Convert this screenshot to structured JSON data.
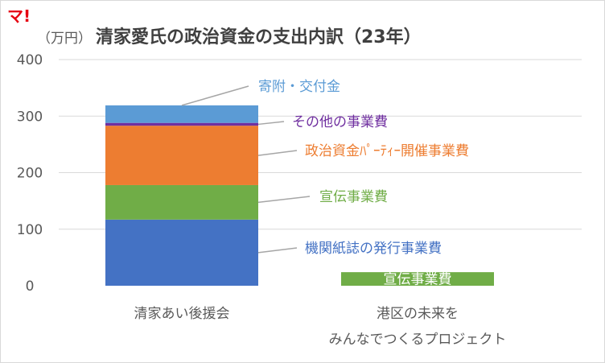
{
  "logo": "マ!",
  "colors": {
    "logo": "#e60012",
    "title": "#404040",
    "axis_text": "#595959",
    "grid": "#d9d9d9",
    "leader": "#a6a6a6",
    "blue": "#4472c4",
    "green": "#70ad47",
    "orange": "#ed7d31",
    "purple": "#7030a0",
    "lightblue": "#5b9bd5"
  },
  "chart_data": {
    "type": "bar",
    "stacked": true,
    "title": "清家愛氏の政治資金の支出内訳（23年）",
    "unit_label": "（万円）",
    "ylim": [
      0,
      400
    ],
    "yticks": [
      0,
      100,
      200,
      300,
      400
    ],
    "grid": true,
    "categories": [
      [
        "清家あい後援会"
      ],
      [
        "港区の未来を",
        "みんなでつくるプロジェクト"
      ]
    ],
    "series": [
      {
        "name": "機関紙誌の発行事業費",
        "color": "#4472c4",
        "values": [
          117,
          0
        ]
      },
      {
        "name": "宣伝事業費",
        "color": "#70ad47",
        "values": [
          61,
          24
        ]
      },
      {
        "name": "政治資金ﾊﾟｰﾃｨｰ開催事業費",
        "color": "#ed7d31",
        "values": [
          105,
          0
        ]
      },
      {
        "name": "その他の事業費",
        "color": "#7030a0",
        "values": [
          5,
          0
        ]
      },
      {
        "name": "寄附・交付金",
        "color": "#5b9bd5",
        "values": [
          31,
          0
        ]
      }
    ],
    "inbar_label": "宣伝事業費"
  }
}
